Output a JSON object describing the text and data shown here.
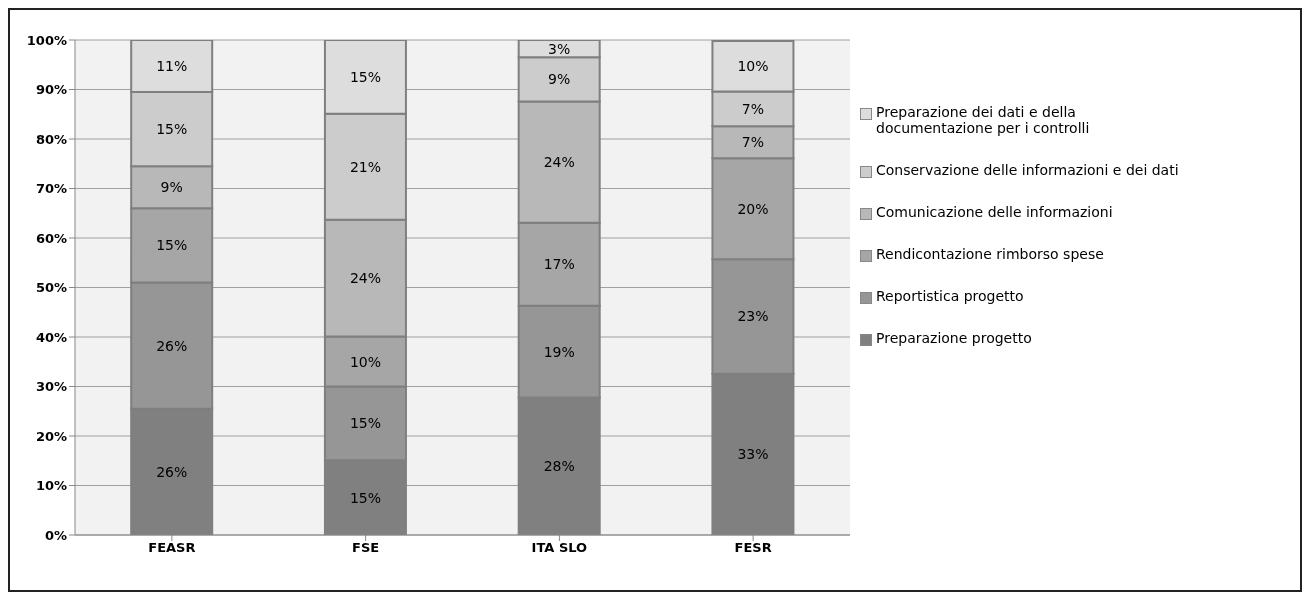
{
  "chart_data": {
    "type": "bar",
    "stacked": true,
    "categories": [
      "FEASR",
      "FSE",
      "ITA SLO",
      "FESR"
    ],
    "series": [
      {
        "name": "Preparazione progetto",
        "color": "#808080",
        "values": [
          25.5,
          15.1,
          27.8,
          32.6
        ],
        "value_labels": [
          "26%",
          "15%",
          "28%",
          "33%"
        ]
      },
      {
        "name": "Reportistica progetto",
        "color": "#969696",
        "values": [
          25.5,
          14.9,
          18.5,
          23.1
        ],
        "value_labels": [
          "26%",
          "15%",
          "19%",
          "23%"
        ]
      },
      {
        "name": "Rendicontazione rimborso spese",
        "color": "#a6a6a6",
        "values": [
          15.0,
          10.1,
          16.8,
          20.4
        ],
        "value_labels": [
          "15%",
          "10%",
          "17%",
          "20%"
        ]
      },
      {
        "name": "Comunicazione delle informazioni",
        "color": "#b8b8b8",
        "values": [
          8.5,
          23.6,
          24.5,
          6.5
        ],
        "value_labels": [
          "9%",
          "24%",
          "24%",
          "7%"
        ]
      },
      {
        "name": "Conservazione delle informazioni e dei dati",
        "color": "#cccccc",
        "values": [
          15.0,
          21.4,
          8.9,
          7.0
        ],
        "value_labels": [
          "15%",
          "21%",
          "9%",
          "7%"
        ]
      },
      {
        "name": "Preparazione dei dati e della documentazione per i controlli",
        "color": "#dddddd",
        "values": [
          10.5,
          14.9,
          3.5,
          10.2
        ],
        "value_labels": [
          "11%",
          "15%",
          "3%",
          "10%"
        ]
      }
    ],
    "ylim": [
      0,
      100
    ],
    "yticks": [
      {
        "value": 0,
        "label": "0%"
      },
      {
        "value": 10,
        "label": "10%"
      },
      {
        "value": 20,
        "label": "20%"
      },
      {
        "value": 30,
        "label": "30%"
      },
      {
        "value": 40,
        "label": "40%"
      },
      {
        "value": 50,
        "label": "50%"
      },
      {
        "value": 60,
        "label": "60%"
      },
      {
        "value": 70,
        "label": "70%"
      },
      {
        "value": 80,
        "label": "80%"
      },
      {
        "value": 90,
        "label": "90%"
      },
      {
        "value": 100,
        "label": "100%"
      }
    ],
    "grid": "y",
    "legend": "right"
  }
}
